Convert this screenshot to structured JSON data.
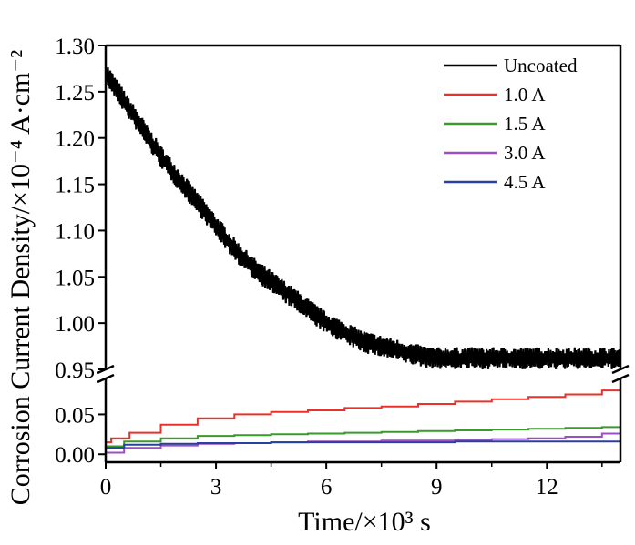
{
  "chart_data": {
    "type": "line",
    "title": "",
    "xlabel": "Time/×10³ s",
    "ylabel": "Corrosion Current Density/×10⁻⁴ A·cm⁻²",
    "xlim": [
      0,
      14
    ],
    "xticks": [
      0,
      3,
      6,
      9,
      12
    ],
    "xtick_labels": [
      "0",
      "3",
      "6",
      "9",
      "12"
    ],
    "axis_break": {
      "y_low_range": [
        -0.01,
        0.095
      ],
      "y_high_range": [
        0.95,
        1.3
      ]
    },
    "yticks_high": [
      0.95,
      1.0,
      1.05,
      1.1,
      1.15,
      1.2,
      1.25,
      1.3
    ],
    "ytick_labels_high": [
      "0.95",
      "1.00",
      "1.05",
      "1.10",
      "1.15",
      "1.20",
      "1.25",
      "1.30"
    ],
    "yticks_low": [
      0.0,
      0.05
    ],
    "ytick_labels_low": [
      "0.00",
      "0.05"
    ],
    "grid": false,
    "legend_position": "top-right",
    "series": [
      {
        "name": "Uncoated",
        "color": "#000000",
        "noise_amplitude": 0.012,
        "x": [
          0,
          0.5,
          1,
          1.5,
          2,
          2.5,
          3,
          3.5,
          4,
          4.5,
          5,
          5.5,
          6,
          6.5,
          7,
          7.5,
          8,
          8.5,
          9,
          10,
          11,
          12,
          13,
          14
        ],
        "y": [
          1.27,
          1.24,
          1.21,
          1.18,
          1.155,
          1.13,
          1.105,
          1.08,
          1.06,
          1.045,
          1.03,
          1.015,
          1.0,
          0.99,
          0.98,
          0.975,
          0.97,
          0.965,
          0.962,
          0.962,
          0.962,
          0.962,
          0.962,
          0.962
        ]
      },
      {
        "name": "1.0 A",
        "color": "#e8312a",
        "x": [
          0,
          0.3,
          1,
          2,
          3,
          4,
          5,
          6,
          7,
          8,
          9,
          10,
          11,
          12,
          13,
          14
        ],
        "y": [
          0.015,
          0.02,
          0.027,
          0.037,
          0.045,
          0.05,
          0.053,
          0.055,
          0.058,
          0.06,
          0.063,
          0.066,
          0.069,
          0.072,
          0.075,
          0.08
        ]
      },
      {
        "name": "1.5 A",
        "color": "#3a9a2c",
        "x": [
          0,
          1,
          2,
          3,
          4,
          5,
          6,
          7,
          8,
          9,
          10,
          11,
          12,
          13,
          14
        ],
        "y": [
          0.01,
          0.016,
          0.02,
          0.023,
          0.024,
          0.025,
          0.026,
          0.027,
          0.028,
          0.029,
          0.03,
          0.031,
          0.032,
          0.033,
          0.034
        ]
      },
      {
        "name": "3.0 A",
        "color": "#9b4fc4",
        "x": [
          0,
          1,
          2,
          3,
          4,
          5,
          6,
          7,
          8,
          9,
          10,
          11,
          12,
          13,
          14
        ],
        "y": [
          0.002,
          0.008,
          0.011,
          0.013,
          0.014,
          0.015,
          0.016,
          0.016,
          0.017,
          0.017,
          0.018,
          0.019,
          0.02,
          0.022,
          0.026
        ]
      },
      {
        "name": "4.5 A",
        "color": "#2a3f9f",
        "x": [
          0,
          1,
          2,
          3,
          4,
          5,
          6,
          7,
          8,
          9,
          10,
          11,
          12,
          13,
          14
        ],
        "y": [
          0.008,
          0.012,
          0.013,
          0.014,
          0.014,
          0.015,
          0.015,
          0.015,
          0.015,
          0.015,
          0.016,
          0.016,
          0.016,
          0.016,
          0.016
        ]
      }
    ]
  }
}
